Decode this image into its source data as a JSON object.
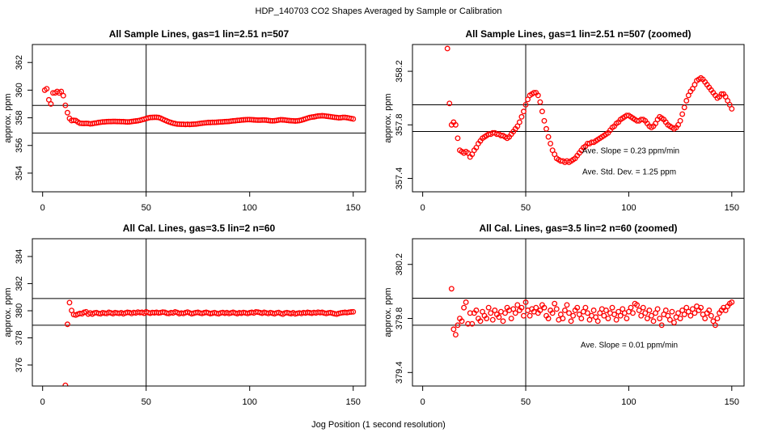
{
  "title": "HDP_140703  CO2 Shapes Averaged by Sample or Calibration",
  "xlabel": "Jog Position (1 second resolution)",
  "chart_data": [
    {
      "type": "scatter",
      "title": "All Sample Lines, gas=1 lin=2.51 n=507",
      "ylabel": "approx. ppm",
      "xlim": [
        -4.96,
        155.96
      ],
      "ylim": [
        352.65,
        363.3
      ],
      "xticks": [
        0,
        50,
        100,
        150
      ],
      "yticks": [
        354,
        356,
        358,
        360,
        362
      ],
      "hlines": [
        358.9,
        356.9
      ],
      "vline": 50,
      "color": "#ff0000",
      "x": [
        1,
        2,
        3,
        4,
        5,
        6,
        7,
        8,
        9,
        10,
        11,
        12,
        13,
        14,
        15,
        16,
        17,
        18,
        19,
        20,
        21,
        22,
        23,
        24,
        25,
        26,
        27,
        28,
        29,
        30,
        31,
        32,
        33,
        34,
        35,
        36,
        37,
        38,
        39,
        40,
        41,
        42,
        43,
        44,
        45,
        46,
        47,
        48,
        49,
        50,
        51,
        52,
        53,
        54,
        55,
        56,
        57,
        58,
        59,
        60,
        61,
        62,
        63,
        64,
        65,
        66,
        67,
        68,
        69,
        70,
        71,
        72,
        73,
        74,
        75,
        76,
        77,
        78,
        79,
        80,
        81,
        82,
        83,
        84,
        85,
        86,
        87,
        88,
        89,
        90,
        91,
        92,
        93,
        94,
        95,
        96,
        97,
        98,
        99,
        100,
        101,
        102,
        103,
        104,
        105,
        106,
        107,
        108,
        109,
        110,
        111,
        112,
        113,
        114,
        115,
        116,
        117,
        118,
        119,
        120,
        121,
        122,
        123,
        124,
        125,
        126,
        127,
        128,
        129,
        130,
        131,
        132,
        133,
        134,
        135,
        136,
        137,
        138,
        139,
        140,
        141,
        142,
        143,
        144,
        145,
        146,
        147,
        148,
        149,
        150
      ],
      "values": [
        360.0,
        360.1,
        359.3,
        359.0,
        359.8,
        359.8,
        359.9,
        359.8,
        359.9,
        359.6,
        358.9,
        358.37,
        357.96,
        357.8,
        357.82,
        357.8,
        357.7,
        357.61,
        357.6,
        357.59,
        357.6,
        357.59,
        357.56,
        357.58,
        357.61,
        357.63,
        357.66,
        357.68,
        357.7,
        357.71,
        357.72,
        357.73,
        357.73,
        357.74,
        357.74,
        357.73,
        357.73,
        357.72,
        357.72,
        357.71,
        357.7,
        357.71,
        357.73,
        357.75,
        357.77,
        357.79,
        357.82,
        357.86,
        357.9,
        357.95,
        357.99,
        358.02,
        358.03,
        358.04,
        358.04,
        358.02,
        357.97,
        357.9,
        357.83,
        357.77,
        357.71,
        357.66,
        357.61,
        357.58,
        357.55,
        357.54,
        357.53,
        357.53,
        357.52,
        357.53,
        357.52,
        357.53,
        357.54,
        357.55,
        357.57,
        357.59,
        357.61,
        357.63,
        357.64,
        357.66,
        357.66,
        357.67,
        357.67,
        357.68,
        357.69,
        357.7,
        357.71,
        357.72,
        357.73,
        357.74,
        357.76,
        357.78,
        357.79,
        357.81,
        357.82,
        357.84,
        357.85,
        357.86,
        357.87,
        357.87,
        357.86,
        357.85,
        357.84,
        357.83,
        357.83,
        357.84,
        357.84,
        357.83,
        357.81,
        357.79,
        357.78,
        357.79,
        357.81,
        357.84,
        357.86,
        357.85,
        357.84,
        357.82,
        357.8,
        357.79,
        357.78,
        357.77,
        357.78,
        357.8,
        357.83,
        357.88,
        357.93,
        357.98,
        358.02,
        358.05,
        358.07,
        358.1,
        358.13,
        358.14,
        358.15,
        358.14,
        358.12,
        358.1,
        358.08,
        358.06,
        358.04,
        358.02,
        358.0,
        358.01,
        358.03,
        358.03,
        358.01,
        357.98,
        357.95,
        357.92
      ]
    },
    {
      "type": "scatter",
      "title": "All Sample Lines, gas=1 lin=2.51 n=507 (zoomed)",
      "ylabel": "approx. ppm",
      "xlim": [
        -4.96,
        155.96
      ],
      "ylim": [
        357.3,
        358.4
      ],
      "xticks": [
        0,
        50,
        100,
        150
      ],
      "yticks": [
        357.4,
        357.8,
        358.2
      ],
      "hlines": [
        357.95,
        357.75
      ],
      "vline": 50,
      "color": "#ff0000",
      "annotations": [
        "Ave. Slope =  0.23  ppm/min",
        "Ave. Std. Dev. =  1.25  ppm"
      ]
    },
    {
      "type": "scatter",
      "title": "All Cal. Lines, gas=3.5 lin=2 n=60",
      "ylabel": "approx. ppm",
      "xlim": [
        -4.96,
        155.96
      ],
      "ylim": [
        374.45,
        385.31
      ],
      "xticks": [
        0,
        50,
        100,
        150
      ],
      "yticks": [
        376,
        378,
        380,
        382,
        384
      ],
      "hlines": [
        380.9,
        378.93
      ],
      "vline": 50,
      "color": "#ff0000",
      "x": [
        11,
        12,
        13,
        14,
        15,
        16,
        17,
        18,
        19,
        20,
        21,
        22,
        23,
        24,
        25,
        26,
        27,
        28,
        29,
        30,
        31,
        32,
        33,
        34,
        35,
        36,
        37,
        38,
        39,
        40,
        41,
        42,
        43,
        44,
        45,
        46,
        47,
        48,
        49,
        50,
        51,
        52,
        53,
        54,
        55,
        56,
        57,
        58,
        59,
        60,
        61,
        62,
        63,
        64,
        65,
        66,
        67,
        68,
        69,
        70,
        71,
        72,
        73,
        74,
        75,
        76,
        77,
        78,
        79,
        80,
        81,
        82,
        83,
        84,
        85,
        86,
        87,
        88,
        89,
        90,
        91,
        92,
        93,
        94,
        95,
        96,
        97,
        98,
        99,
        100,
        101,
        102,
        103,
        104,
        105,
        106,
        107,
        108,
        109,
        110,
        111,
        112,
        113,
        114,
        115,
        116,
        117,
        118,
        119,
        120,
        121,
        122,
        123,
        124,
        125,
        126,
        127,
        128,
        129,
        130,
        131,
        132,
        133,
        134,
        135,
        136,
        137,
        138,
        139,
        140,
        141,
        142,
        143,
        144,
        145,
        146,
        147,
        148,
        149,
        150
      ],
      "values": [
        374.5,
        379.0,
        380.6,
        380.02,
        379.72,
        379.68,
        379.75,
        379.8,
        379.78,
        379.88,
        379.92,
        379.76,
        379.84,
        379.76,
        379.84,
        379.86,
        379.8,
        379.78,
        379.85,
        379.82,
        379.8,
        379.88,
        379.84,
        379.79,
        379.86,
        379.83,
        379.81,
        379.85,
        379.78,
        379.84,
        379.88,
        379.86,
        379.8,
        379.87,
        379.84,
        379.9,
        379.86,
        379.88,
        379.82,
        379.92,
        379.86,
        379.82,
        379.87,
        379.85,
        379.88,
        379.84,
        379.86,
        379.9,
        379.88,
        379.82,
        379.8,
        379.86,
        379.84,
        379.91,
        379.87,
        379.79,
        379.83,
        379.8,
        379.86,
        379.9,
        379.84,
        379.78,
        379.82,
        379.86,
        379.88,
        379.83,
        379.8,
        379.85,
        379.88,
        379.84,
        379.79,
        379.82,
        379.86,
        379.81,
        379.78,
        379.84,
        379.87,
        379.82,
        379.86,
        379.8,
        379.84,
        379.88,
        379.83,
        379.79,
        379.85,
        379.82,
        379.87,
        379.84,
        379.8,
        379.85,
        379.88,
        379.84,
        379.91,
        379.9,
        379.86,
        379.82,
        379.88,
        379.84,
        379.8,
        379.86,
        379.82,
        379.78,
        379.84,
        379.87,
        379.8,
        379.75,
        379.83,
        379.86,
        379.82,
        379.79,
        379.85,
        379.77,
        379.81,
        379.84,
        379.8,
        379.86,
        379.83,
        379.88,
        379.85,
        379.82,
        379.87,
        379.84,
        379.89,
        379.86,
        379.88,
        379.83,
        379.8,
        379.84,
        379.86,
        379.82,
        379.78,
        379.75,
        379.8,
        379.84,
        379.86,
        379.88,
        379.86,
        379.89,
        379.91,
        379.92
      ]
    },
    {
      "type": "scatter",
      "title": "All Cal. Lines, gas=3.5 lin=2 n=60 (zoomed)",
      "ylabel": "approx. ppm",
      "xlim": [
        -4.96,
        155.96
      ],
      "ylim": [
        379.3,
        380.39
      ],
      "xticks": [
        0,
        50,
        100,
        150
      ],
      "yticks": [
        379.4,
        379.8,
        380.2
      ],
      "hlines": [
        379.95,
        379.75
      ],
      "vline": 50,
      "color": "#ff0000",
      "annotations": [
        "Ave. Slope =  0.01  ppm/min"
      ]
    }
  ]
}
